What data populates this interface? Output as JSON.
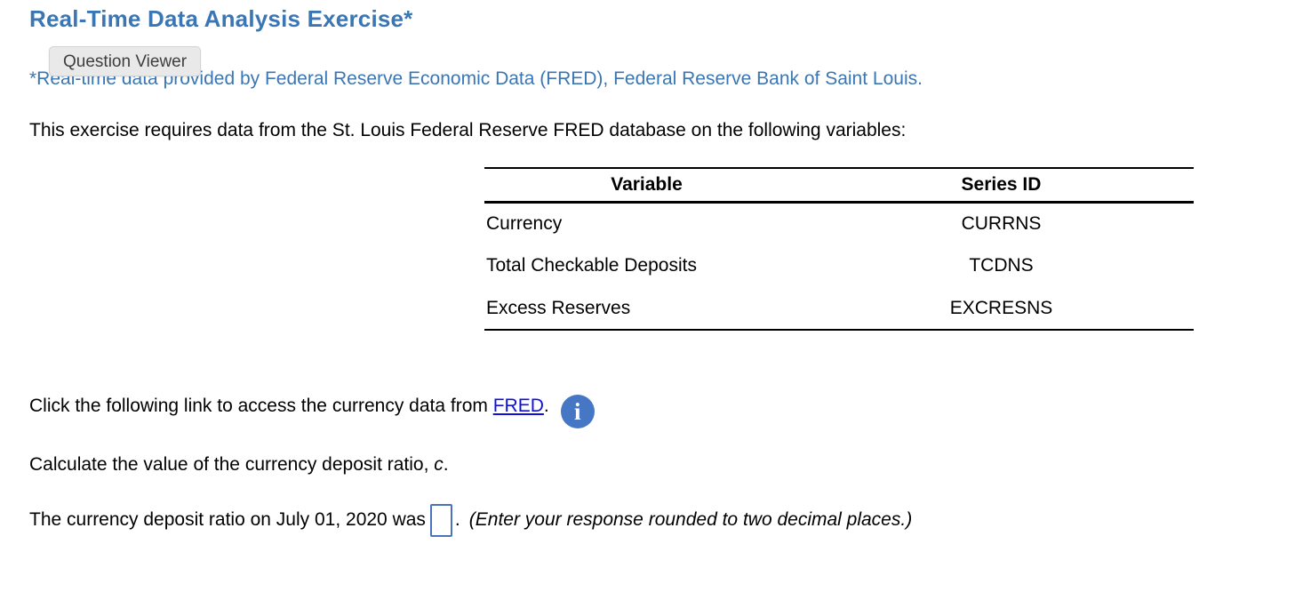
{
  "page": {
    "title": "Real-Time Data Analysis Exercise*",
    "tooltip_label": "Question Viewer",
    "subtitle": "*Real-time data provided by Federal Reserve Economic Data (FRED), Federal Reserve Bank of Saint Louis.",
    "intro": "This exercise requires data from the St. Louis Federal Reserve FRED database on the following variables:"
  },
  "table": {
    "headers": {
      "variable": "Variable",
      "series_id": "Series ID"
    },
    "rows": [
      {
        "variable": "Currency",
        "series_id": "CURRNS"
      },
      {
        "variable": "Total Checkable Deposits",
        "series_id": "TCDNS"
      },
      {
        "variable": "Excess Reserves",
        "series_id": "EXCRESNS"
      }
    ]
  },
  "link_line": {
    "prefix": "Click the following link to access the currency data from ",
    "link_label": "FRED",
    "suffix": ".",
    "icon_glyph": "i"
  },
  "task_line": {
    "prefix": "Calculate the value of the currency deposit ratio, ",
    "variable_symbol": "c",
    "suffix": "."
  },
  "answer_line": {
    "prefix": "The currency deposit ratio on July 01, 2020 was",
    "input_value": "",
    "period": ".",
    "hint": "(Enter your response rounded to two decimal places.)"
  },
  "colors": {
    "heading_blue": "#3b76b4",
    "link_blue": "#0f0fe0",
    "info_icon_blue": "#4577c4",
    "input_border_blue": "#4a73ba",
    "tooltip_background": "#e9e9e9"
  }
}
